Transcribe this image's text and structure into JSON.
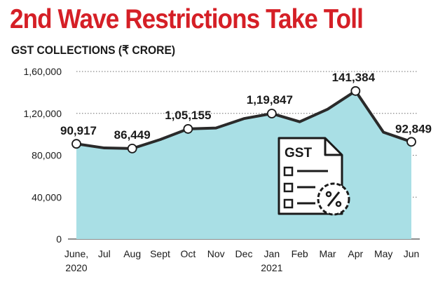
{
  "title": "2nd Wave Restrictions Take Toll",
  "subtitle": "GST COLLECTIONS (₹ CRORE)",
  "icon": {
    "name": "gst-invoice-icon",
    "label": "GST"
  },
  "colors": {
    "title": "#d51f26",
    "area_fill": "#a9dfe5",
    "line": "#2a2a2a",
    "marker_fill": "#ffffff"
  },
  "chart_data": {
    "type": "area",
    "title": "2nd Wave Restrictions Take Toll",
    "subtitle": "GST COLLECTIONS (₹ CRORE)",
    "xlabel": "",
    "ylabel": "",
    "categories": [
      "June,\n2020",
      "Jul",
      "Aug",
      "Sept",
      "Oct",
      "Nov",
      "Dec",
      "Jan\n2021",
      "Feb",
      "Mar",
      "Apr",
      "May",
      "Jun"
    ],
    "values": [
      90917,
      87000,
      86449,
      95000,
      105155,
      106000,
      115000,
      119847,
      112000,
      124000,
      141384,
      102000,
      92849
    ],
    "ylim": [
      0,
      160000
    ],
    "yticks": [
      0,
      40000,
      80000,
      120000,
      160000
    ],
    "ytick_labels": [
      "0",
      "40,000",
      "80,000",
      "1,20,000",
      "1,60,000"
    ],
    "grid": "horizontal dotted",
    "annotations": [
      {
        "index": 0,
        "label": "90,917"
      },
      {
        "index": 2,
        "label": "86,449"
      },
      {
        "index": 4,
        "label": "1,05,155"
      },
      {
        "index": 7,
        "label": "1,19,847"
      },
      {
        "index": 10,
        "label": "141,384"
      },
      {
        "index": 12,
        "label": "92,849"
      }
    ]
  }
}
